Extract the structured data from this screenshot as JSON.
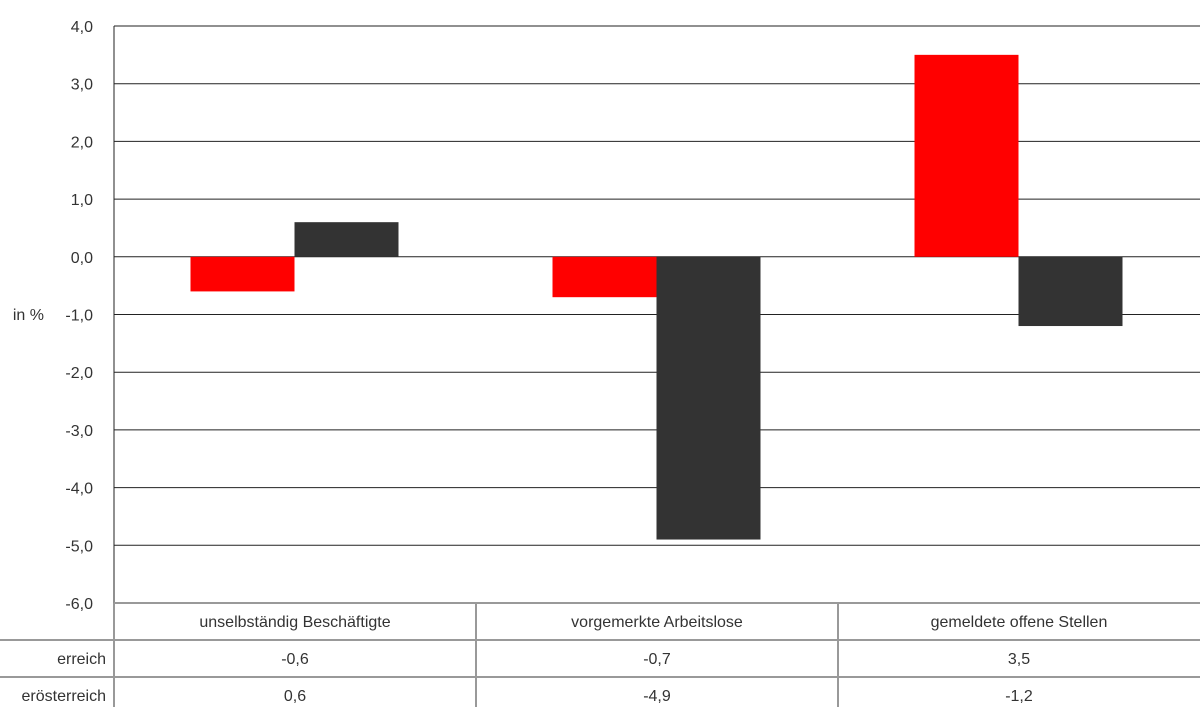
{
  "chart_data": {
    "type": "bar",
    "categories": [
      "unselbständig Beschäftigte",
      "vorgemerkte Arbeitslose",
      "gemeldete offene Stellen"
    ],
    "series": [
      {
        "name": "erreich",
        "color": "#ff0000",
        "values": [
          -0.6,
          -0.7,
          3.5
        ],
        "labels": [
          "-0,6",
          "-0,7",
          "3,5"
        ]
      },
      {
        "name": "erösterreich",
        "color": "#333333",
        "values": [
          0.6,
          -4.9,
          -1.2
        ],
        "labels": [
          "0,6",
          "-4,9",
          "-1,2"
        ]
      }
    ],
    "ylabel": "in %",
    "ylim": [
      -6.0,
      4.0
    ],
    "yticks": [
      4.0,
      3.0,
      2.0,
      1.0,
      0.0,
      -1.0,
      -2.0,
      -3.0,
      -4.0,
      -5.0,
      -6.0
    ],
    "yticklabels": [
      "4,0",
      "3,0",
      "2,0",
      "1,0",
      "0,0",
      "-1,0",
      "-2,0",
      "-3,0",
      "-4,0",
      "-5,0",
      "-6,0"
    ],
    "grid": true,
    "legend": "data-table-below"
  }
}
